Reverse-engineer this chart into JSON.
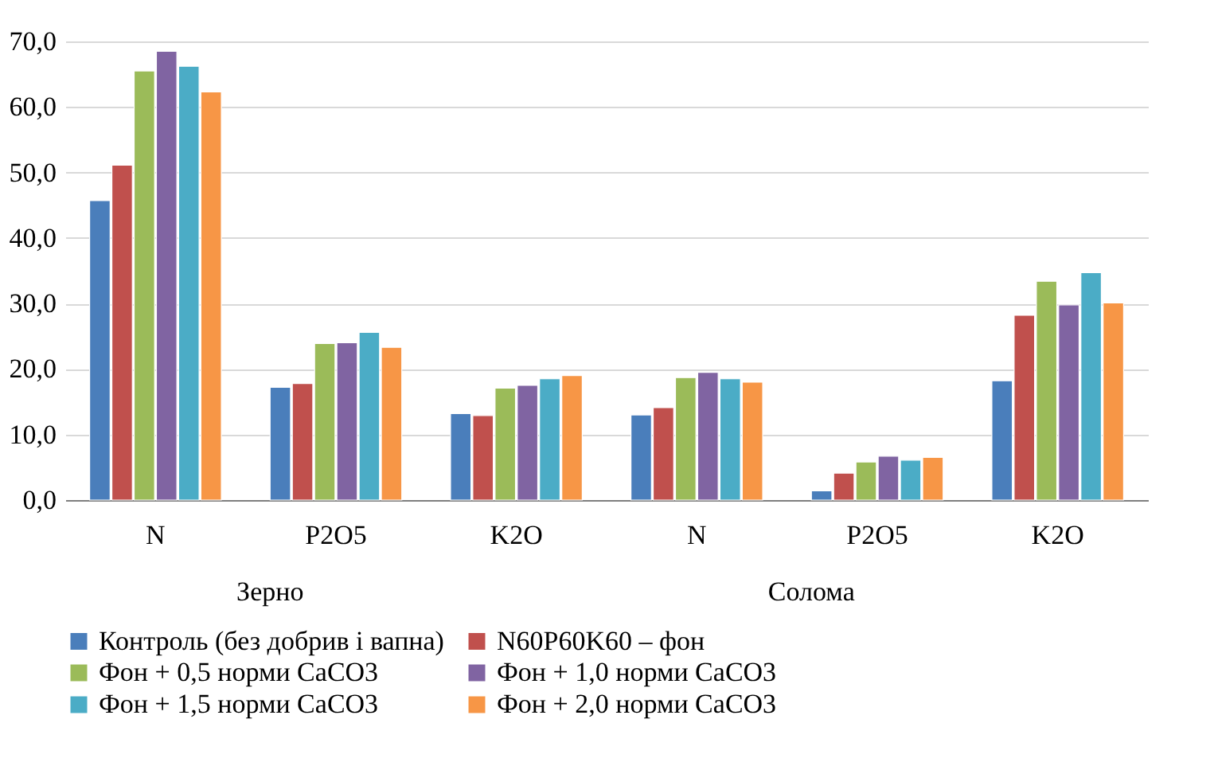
{
  "chart_data": {
    "type": "bar",
    "categories": [
      "N",
      "P2O5",
      "K2O",
      "N",
      "P2O5",
      "K2O"
    ],
    "annotations": [
      "Зерно",
      "Солома"
    ],
    "series": [
      {
        "name": "Контроль (без добрив і вапна)",
        "color": "#4a7ebb",
        "values": [
          45.7,
          17.2,
          13.2,
          13.0,
          1.4,
          18.2
        ]
      },
      {
        "name": "N60P60K60 – фон",
        "color": "#c0504d",
        "values": [
          51.1,
          17.8,
          12.9,
          14.1,
          4.1,
          28.2
        ]
      },
      {
        "name": "Фон + 0,5 норми CaCO3",
        "color": "#9bbb59",
        "values": [
          65.5,
          23.9,
          17.1,
          18.7,
          5.8,
          33.4
        ]
      },
      {
        "name": "Фон + 1,0 норми CaCO3",
        "color": "#8064a2",
        "values": [
          68.5,
          24.0,
          17.5,
          19.5,
          6.7,
          29.8
        ]
      },
      {
        "name": "Фон + 1,5 норми CaCO3",
        "color": "#4bacc6",
        "values": [
          66.2,
          25.6,
          18.5,
          18.5,
          6.1,
          34.7
        ]
      },
      {
        "name": "Фон + 2,0 норми CaCO3",
        "color": "#f79646",
        "values": [
          62.3,
          23.3,
          19.0,
          18.0,
          6.5,
          30.1
        ]
      }
    ],
    "ylim": [
      0,
      70
    ],
    "yticks": [
      {
        "value": 0,
        "label": "0,0"
      },
      {
        "value": 10,
        "label": "10,0"
      },
      {
        "value": 20,
        "label": "20,0"
      },
      {
        "value": 30,
        "label": "30,0"
      },
      {
        "value": 40,
        "label": "40,0"
      },
      {
        "value": 50,
        "label": "50,0"
      },
      {
        "value": 60,
        "label": "60,0"
      },
      {
        "value": 70,
        "label": "70,0"
      }
    ],
    "grid": "y",
    "legend": "bottom"
  }
}
